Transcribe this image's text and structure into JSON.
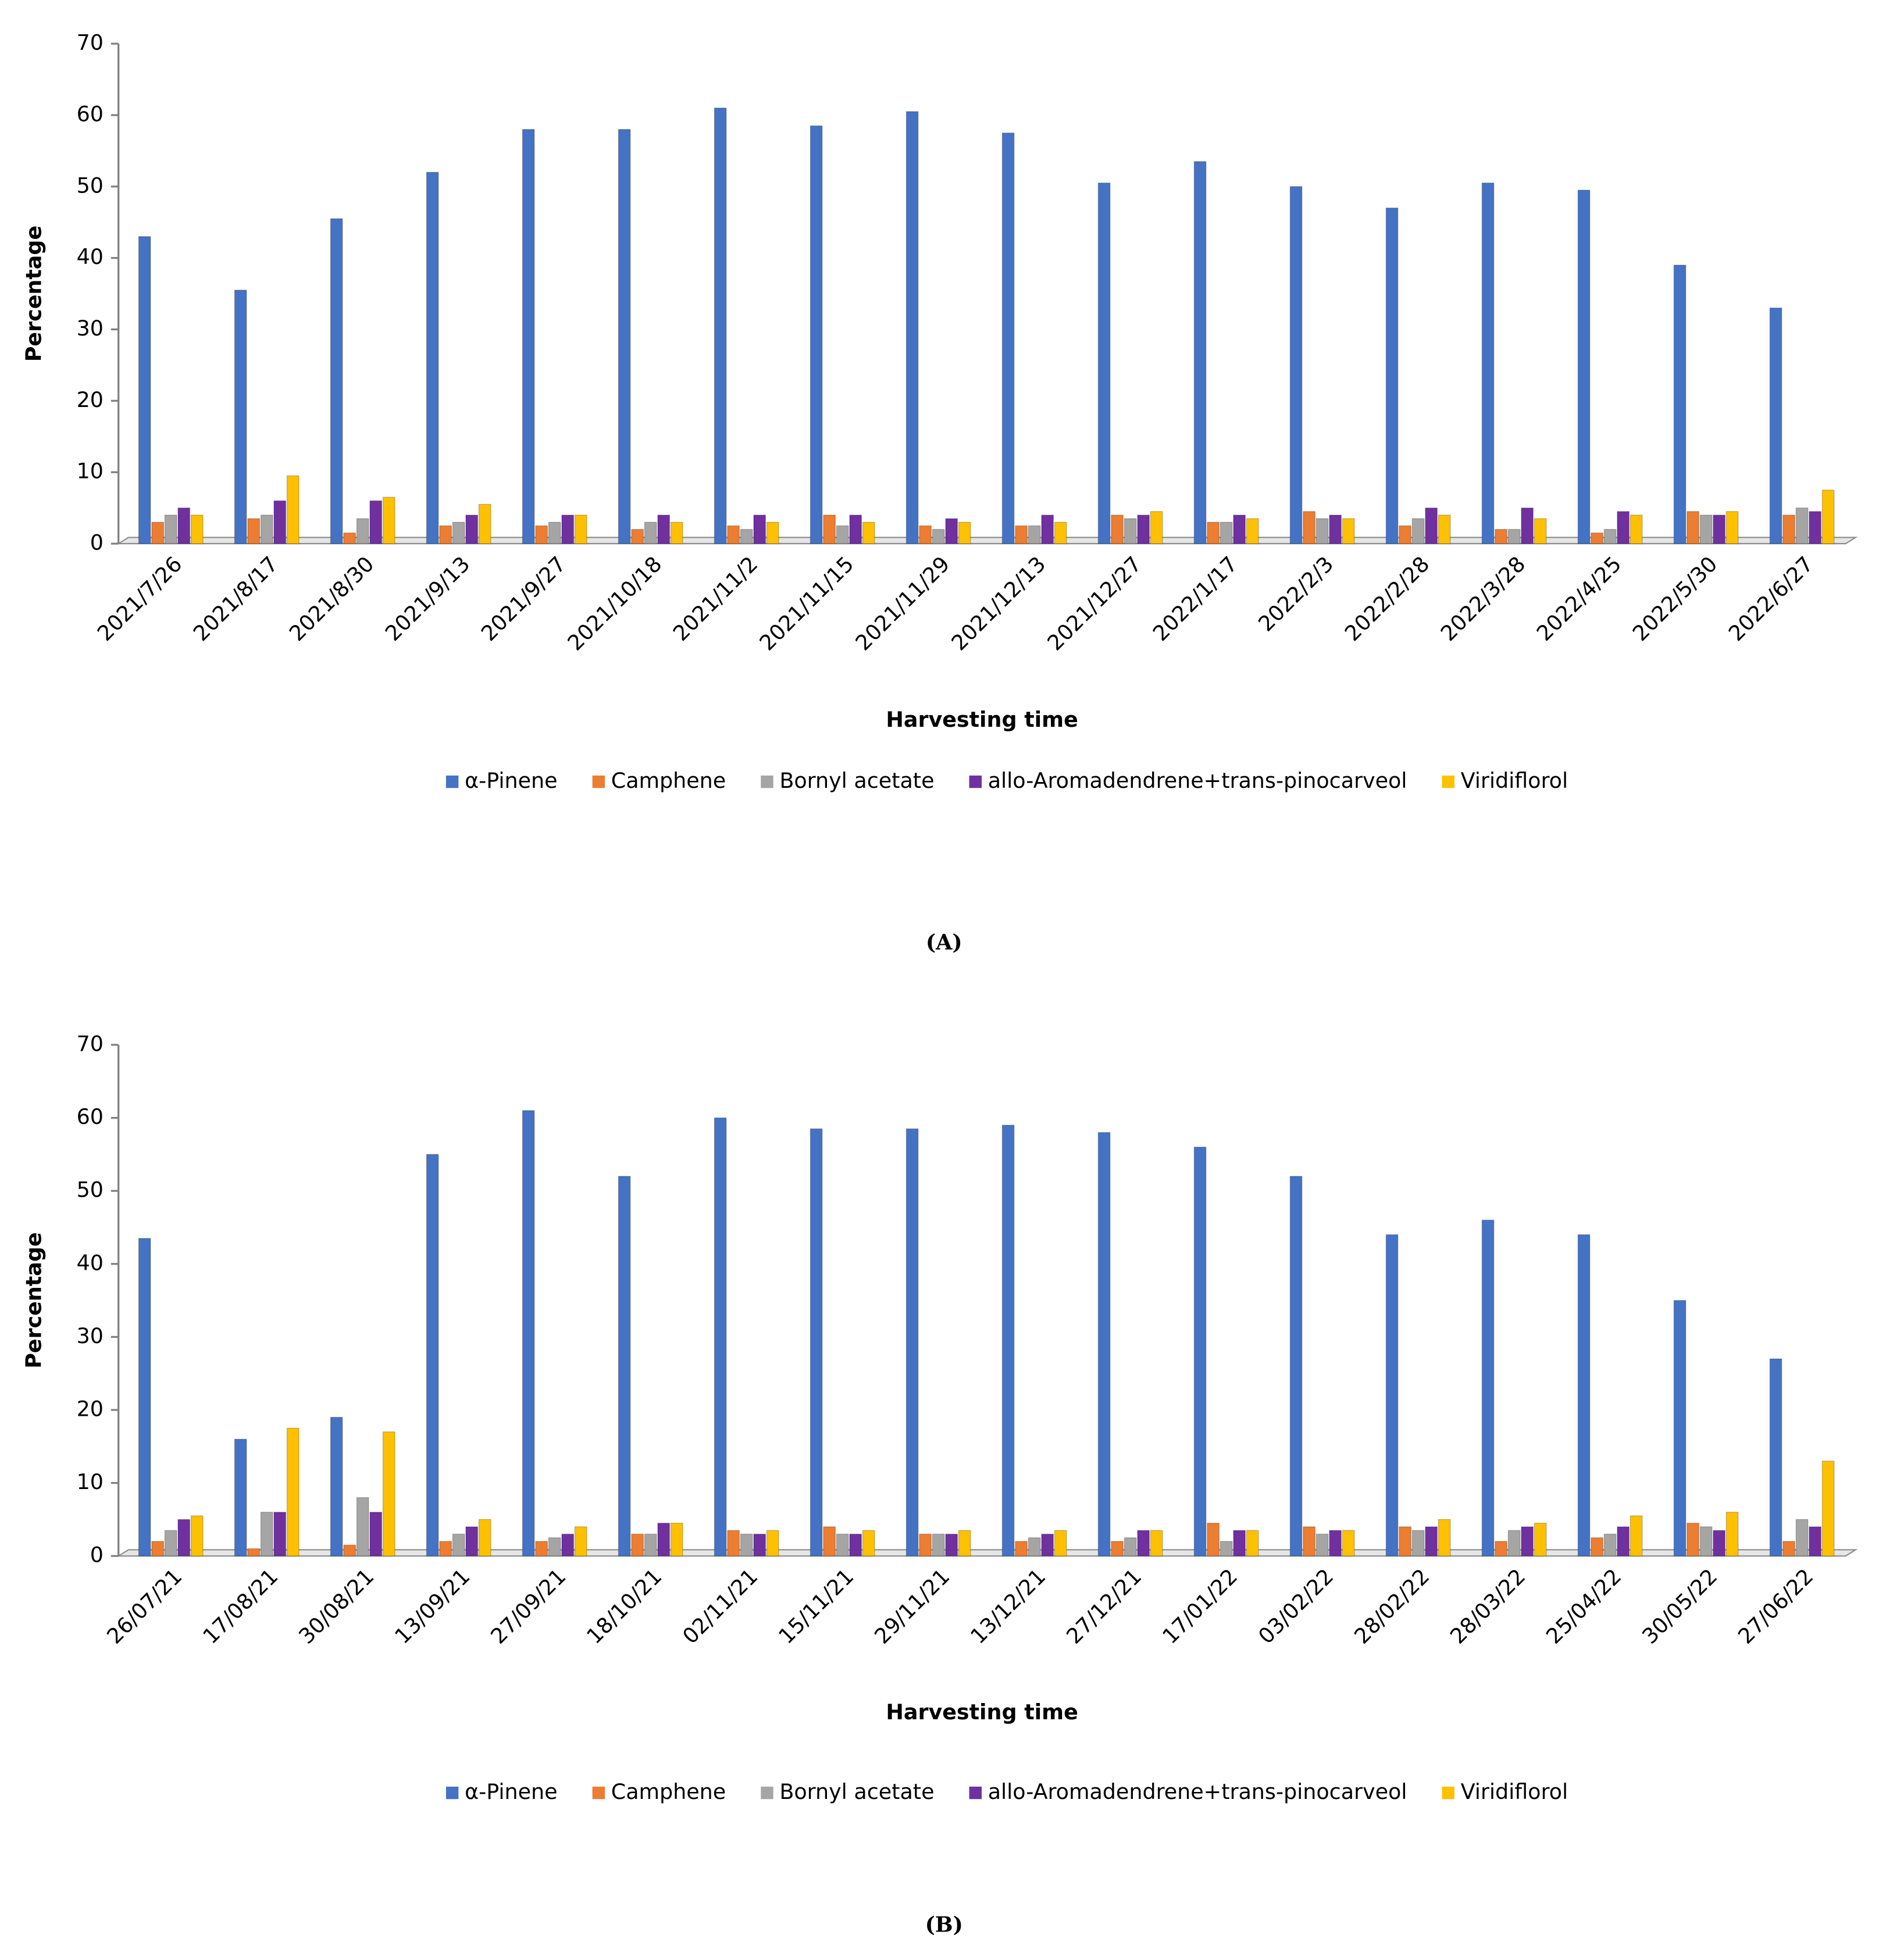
{
  "chart_data": [
    {
      "type": "bar",
      "label": "(A)",
      "xlabel": "Harvesting time",
      "ylabel": "Percentage",
      "categories": [
        "2021/7/26",
        "2021/8/17",
        "2021/8/30",
        "2021/9/13",
        "2021/9/27",
        "2021/10/18",
        "2021/11/2",
        "2021/11/15",
        "2021/11/29",
        "2021/12/13",
        "2021/12/27",
        "2022/1/17",
        "2022/2/3",
        "2022/2/28",
        "2022/3/28",
        "2022/4/25",
        "2022/5/30",
        "2022/6/27"
      ],
      "series": [
        {
          "name": "α-Pinene",
          "color": "#4472c4",
          "values": [
            43,
            35.5,
            45.5,
            52,
            58,
            58,
            61,
            58.5,
            60.5,
            57.5,
            50.5,
            53.5,
            50,
            47,
            50.5,
            49.5,
            39,
            33
          ]
        },
        {
          "name": "Camphene",
          "color": "#ed7d31",
          "values": [
            3,
            3.5,
            1.5,
            2.5,
            2.5,
            2,
            2.5,
            4,
            2.5,
            2.5,
            4,
            3,
            4.5,
            2.5,
            2,
            1.5,
            4.5,
            4
          ]
        },
        {
          "name": "Bornyl acetate",
          "color": "#a5a5a5",
          "values": [
            4,
            4,
            3.5,
            3,
            3,
            3,
            2,
            2.5,
            2,
            2.5,
            3.5,
            3,
            3.5,
            3.5,
            2,
            2,
            4,
            5
          ]
        },
        {
          "name": "allo-Aromadendrene+trans-pinocarveol",
          "color": "#7030a0",
          "values": [
            5,
            6,
            6,
            4,
            4,
            4,
            4,
            4,
            3.5,
            4,
            4,
            4,
            4,
            5,
            5,
            4.5,
            4,
            4.5
          ]
        },
        {
          "name": "Viridiflorol",
          "color": "#ffc000",
          "values": [
            4,
            9.5,
            6.5,
            5.5,
            4,
            3,
            3,
            3,
            3,
            3,
            4.5,
            3.5,
            3.5,
            4,
            3.5,
            4,
            4.5,
            7.5
          ]
        }
      ],
      "ylim": [
        0,
        70
      ],
      "yticks": [
        0,
        10,
        20,
        30,
        40,
        50,
        60,
        70
      ],
      "grid": false,
      "legend": "bottom"
    },
    {
      "type": "bar",
      "label": "(B)",
      "xlabel": "Harvesting time",
      "ylabel": "Percentage",
      "categories": [
        "26/07/21",
        "17/08/21",
        "30/08/21",
        "13/09/21",
        "27/09/21",
        "18/10/21",
        "02/11/21",
        "15/11/21",
        "29/11/21",
        "13/12/21",
        "27/12/21",
        "17/01/22",
        "03/02/22",
        "28/02/22",
        "28/03/22",
        "25/04/22",
        "30/05/22",
        "27/06/22"
      ],
      "series": [
        {
          "name": "α-Pinene",
          "color": "#4472c4",
          "values": [
            43.5,
            16,
            19,
            55,
            61,
            52,
            60,
            58.5,
            58.5,
            59,
            58,
            56,
            52,
            44,
            46,
            44,
            35,
            27
          ]
        },
        {
          "name": "Camphene",
          "color": "#ed7d31",
          "values": [
            2,
            1,
            1.5,
            2,
            2,
            3,
            3.5,
            4,
            3,
            2,
            2,
            4.5,
            4,
            4,
            2,
            2.5,
            4.5,
            2
          ]
        },
        {
          "name": "Bornyl acetate",
          "color": "#a5a5a5",
          "values": [
            3.5,
            6,
            8,
            3,
            2.5,
            3,
            3,
            3,
            3,
            2.5,
            2.5,
            2,
            3,
            3.5,
            3.5,
            3,
            4,
            5
          ]
        },
        {
          "name": "allo-Aromadendrene+trans-pinocarveol",
          "color": "#7030a0",
          "values": [
            5,
            6,
            6,
            4,
            3,
            4.5,
            3,
            3,
            3,
            3,
            3.5,
            3.5,
            3.5,
            4,
            4,
            4,
            3.5,
            4
          ]
        },
        {
          "name": "Viridiflorol",
          "color": "#ffc000",
          "values": [
            5.5,
            17.5,
            17,
            5,
            4,
            4.5,
            3.5,
            3.5,
            3.5,
            3.5,
            3.5,
            3.5,
            3.5,
            5,
            4.5,
            5.5,
            6,
            13
          ]
        }
      ],
      "ylim": [
        0,
        70
      ],
      "yticks": [
        0,
        10,
        20,
        30,
        40,
        50,
        60,
        70
      ],
      "grid": false,
      "legend": "bottom"
    }
  ]
}
